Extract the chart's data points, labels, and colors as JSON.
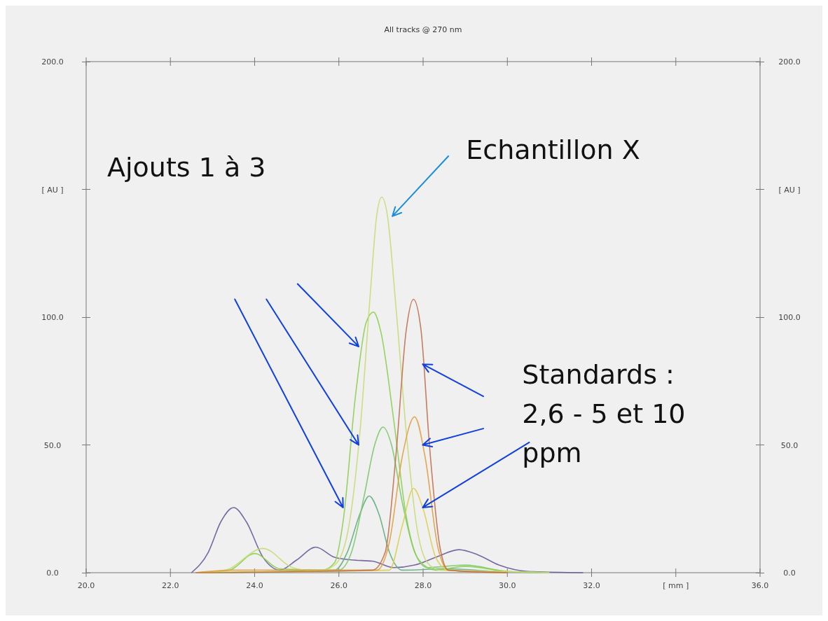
{
  "chart_data": {
    "type": "line",
    "title": "All tracks @ 270 nm",
    "xlim": [
      20,
      36
    ],
    "xticks": [
      {
        "value": 20,
        "label": "20.0"
      },
      {
        "value": 22,
        "label": "22.0"
      },
      {
        "value": 24,
        "label": "24.0"
      },
      {
        "value": 26,
        "label": "26.0"
      },
      {
        "value": 28,
        "label": "28.0"
      },
      {
        "value": 30,
        "label": "30.0"
      },
      {
        "value": 32,
        "label": "32.0"
      },
      {
        "value": 34,
        "label": "[ mm ]"
      },
      {
        "value": 36,
        "label": "36.0"
      }
    ],
    "ylim": [
      0,
      200
    ],
    "yticks": [
      {
        "value": 0,
        "label": "0.0"
      },
      {
        "value": 50,
        "label": "50.0"
      },
      {
        "value": 100,
        "label": "100.0"
      },
      {
        "value": 150,
        "label": "[ AU ]"
      },
      {
        "value": 200,
        "label": "200.0"
      }
    ],
    "y2lim": [
      0,
      200
    ],
    "y2ticks": [
      {
        "value": 0,
        "label": "0.0"
      },
      {
        "value": 50,
        "label": "50.0"
      },
      {
        "value": 100,
        "label": "100.0"
      },
      {
        "value": 150,
        "label": "[ AU ]"
      },
      {
        "value": 200,
        "label": "200.0"
      }
    ],
    "line_style": "solid",
    "annotations": [
      "Ajouts 1 à 3",
      "Echantillon X",
      {
        "text": "Standards : 2,6 - 5 et 10 ppm",
        "x": 27.99,
        "y": 25.5
      }
    ],
    "series": [
      {
        "color": "#6a5a9a",
        "x": [
          22.5,
          22.9,
          23.2,
          23.5,
          23.8,
          24.2,
          24.6,
          25.0,
          25.45,
          25.9,
          26.3,
          26.8,
          27.3,
          27.8,
          28.3,
          28.85,
          29.3,
          29.8,
          30.5,
          31.8
        ],
        "values": [
          0,
          8,
          20,
          25.5,
          20,
          6,
          1,
          5,
          10,
          6,
          5,
          4.5,
          2,
          3,
          6,
          9,
          7,
          3,
          0.5,
          0
        ]
      },
      {
        "color": "#5fae80",
        "x": [
          22.6,
          25.9,
          26.2,
          26.5,
          26.72,
          26.95,
          27.2,
          27.5,
          28.5,
          30
        ],
        "values": [
          0,
          1,
          8,
          23,
          30,
          23,
          8,
          1,
          1.5,
          0
        ]
      },
      {
        "color": "#7cc86e",
        "x": [
          22.6,
          26.0,
          26.3,
          26.6,
          26.85,
          27.05,
          27.25,
          27.5,
          27.8,
          28.1,
          29,
          30,
          31
        ],
        "values": [
          0,
          1,
          8,
          30,
          50,
          57,
          50,
          28,
          8,
          2,
          3,
          0.5,
          0
        ]
      },
      {
        "color": "#8ccf50",
        "x": [
          22.6,
          23.4,
          24.0,
          24.6,
          25.6,
          25.9,
          26.1,
          26.4,
          26.65,
          26.82,
          27.0,
          27.3,
          27.6,
          27.9,
          28.3,
          29.0,
          30,
          31
        ],
        "values": [
          0,
          1,
          7.5,
          1.5,
          1,
          4,
          20,
          70,
          98,
          102,
          94,
          60,
          22,
          5,
          1,
          2.5,
          0.5,
          0
        ]
      },
      {
        "color": "#c8dc78",
        "x": [
          22.6,
          23.3,
          24.2,
          24.9,
          25.5,
          25.9,
          26.2,
          26.5,
          26.75,
          26.9,
          27.02,
          27.15,
          27.35,
          27.6,
          27.85,
          28.1,
          28.4,
          30,
          31
        ],
        "values": [
          0,
          1,
          9.5,
          2,
          0.5,
          3,
          15,
          55,
          110,
          140,
          147,
          140,
          105,
          55,
          18,
          4,
          1,
          0.5,
          0
        ]
      },
      {
        "color": "#d8d050",
        "x": [
          22.6,
          27.2,
          27.5,
          27.77,
          28.0,
          28.3,
          28.6,
          30
        ],
        "values": [
          0,
          1,
          18,
          33,
          25,
          6,
          1,
          0
        ]
      },
      {
        "color": "#e0a040",
        "x": [
          22.6,
          23.5,
          26.9,
          27.2,
          27.5,
          27.8,
          28.05,
          28.35,
          28.6,
          30
        ],
        "values": [
          0,
          1,
          1,
          12,
          45,
          61,
          45,
          10,
          1,
          0
        ]
      },
      {
        "color": "#c07050",
        "x": [
          22.6,
          26.8,
          27.1,
          27.35,
          27.6,
          27.77,
          27.95,
          28.15,
          28.4,
          28.6,
          30
        ],
        "values": [
          0,
          1,
          8,
          45,
          95,
          107,
          95,
          50,
          10,
          1,
          0
        ]
      }
    ]
  }
}
